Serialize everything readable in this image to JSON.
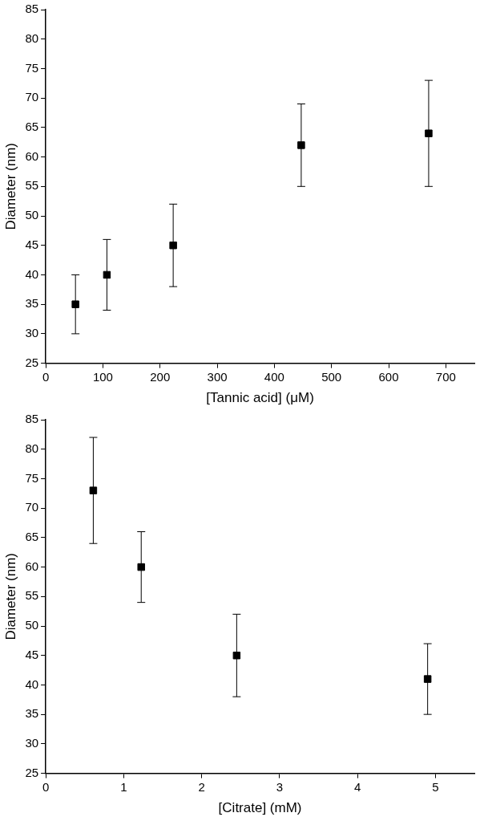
{
  "chart_data": [
    {
      "type": "scatter",
      "xlabel": "[Tannic acid] (μM)",
      "ylabel": "Diameter (nm)",
      "x": [
        52,
        107,
        223,
        447,
        670
      ],
      "values": [
        35,
        40,
        45,
        62,
        64
      ],
      "errors": [
        [
          30,
          40
        ],
        [
          34,
          46
        ],
        [
          38,
          52
        ],
        [
          55,
          69
        ],
        [
          55,
          73
        ]
      ],
      "color": "#000000",
      "marker": "square",
      "xlim": [
        0,
        750
      ],
      "xticks": [
        0,
        100,
        200,
        300,
        400,
        500,
        600,
        700
      ],
      "ylim": [
        25,
        85
      ],
      "yticks": [
        25,
        30,
        35,
        40,
        45,
        50,
        55,
        60,
        65,
        70,
        75,
        80,
        85
      ],
      "grid": false,
      "legend": false
    },
    {
      "type": "scatter",
      "xlabel": "[Citrate] (mM)",
      "ylabel": "Diameter (nm)",
      "x": [
        0.61,
        1.225,
        2.45,
        4.9
      ],
      "values": [
        73,
        60,
        45,
        41
      ],
      "errors": [
        [
          64,
          82
        ],
        [
          54,
          66
        ],
        [
          38,
          52
        ],
        [
          35,
          47
        ]
      ],
      "color": "#000000",
      "marker": "square",
      "xlim": [
        0,
        5.5
      ],
      "xticks": [
        0,
        1,
        2,
        3,
        4,
        5
      ],
      "ylim": [
        25,
        85
      ],
      "yticks": [
        25,
        30,
        35,
        40,
        45,
        50,
        55,
        60,
        65,
        70,
        75,
        80,
        85
      ],
      "grid": false,
      "legend": false
    }
  ]
}
